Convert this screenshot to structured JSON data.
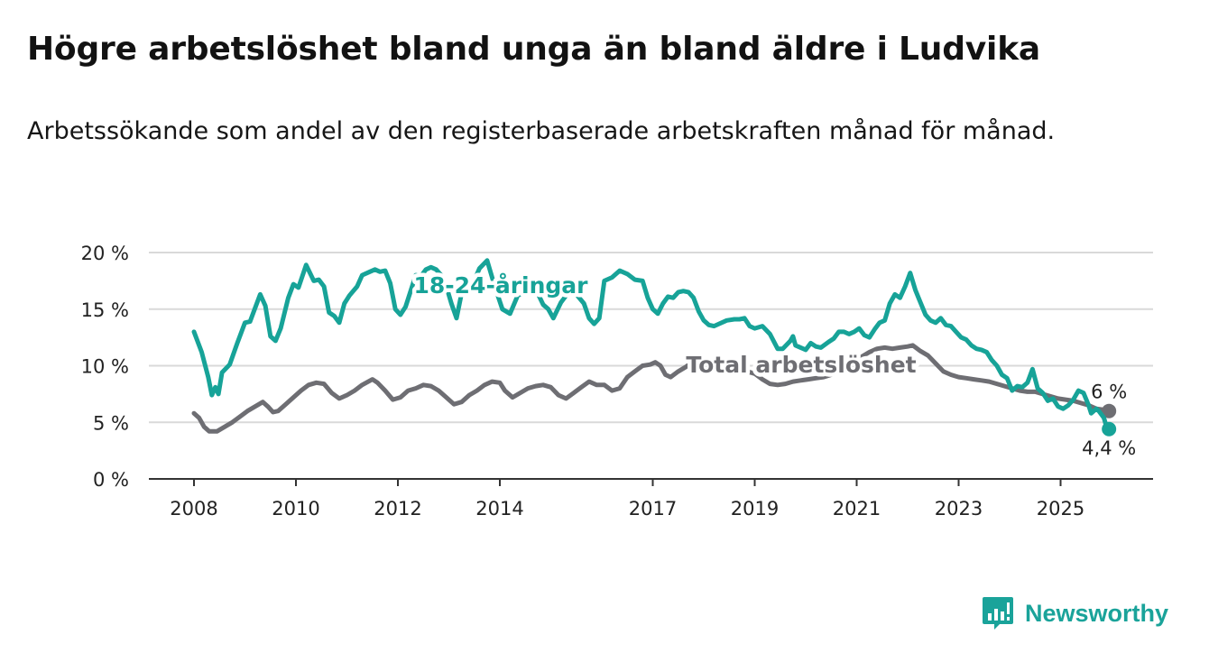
{
  "header": {
    "title": "Högre arbetslöshet bland unga än bland äldre i Ludvika",
    "subtitle": "Arbetssökande som andel av den registerbaserade arbetskraften månad för månad."
  },
  "brand": {
    "name": "Newsworthy",
    "color": "#1aa39a",
    "icon": "chart-bars-icon"
  },
  "chart_data": {
    "type": "line",
    "title": "Högre arbetslöshet bland unga än bland äldre i Ludvika",
    "subtitle": "Arbetssökande som andel av den registerbaserade arbetskraften månad för månad.",
    "xlabel": "",
    "ylabel": "",
    "x_range": [
      2008.0,
      2025.95
    ],
    "ylim": [
      0,
      20
    ],
    "y_ticks": [
      0,
      5,
      10,
      15,
      20
    ],
    "y_tick_labels": [
      "0 %",
      "5 %",
      "10 %",
      "15 %",
      "20 %"
    ],
    "x_ticks": [
      2008,
      2010,
      2012,
      2014,
      2017,
      2019,
      2021,
      2023,
      2025
    ],
    "x_tick_labels": [
      "2008",
      "2010",
      "2012",
      "2014",
      "2017",
      "2019",
      "2021",
      "2023",
      "2025"
    ],
    "grid": true,
    "series": [
      {
        "name": "18-24-åringar",
        "color": "#17a398",
        "end_label": "4,4 %",
        "points": [
          [
            2008.0,
            13.0
          ],
          [
            2008.15,
            11.2
          ],
          [
            2008.28,
            9.0
          ],
          [
            2008.35,
            7.4
          ],
          [
            2008.42,
            8.1
          ],
          [
            2008.48,
            7.5
          ],
          [
            2008.55,
            9.4
          ],
          [
            2008.7,
            10.1
          ],
          [
            2008.85,
            12.0
          ],
          [
            2009.0,
            13.8
          ],
          [
            2009.1,
            13.9
          ],
          [
            2009.3,
            16.3
          ],
          [
            2009.4,
            15.3
          ],
          [
            2009.5,
            12.6
          ],
          [
            2009.6,
            12.2
          ],
          [
            2009.7,
            13.3
          ],
          [
            2009.85,
            16.0
          ],
          [
            2009.95,
            17.2
          ],
          [
            2010.05,
            16.9
          ],
          [
            2010.2,
            18.9
          ],
          [
            2010.35,
            17.5
          ],
          [
            2010.45,
            17.6
          ],
          [
            2010.55,
            17.0
          ],
          [
            2010.65,
            14.7
          ],
          [
            2010.75,
            14.4
          ],
          [
            2010.85,
            13.8
          ],
          [
            2010.95,
            15.5
          ],
          [
            2011.05,
            16.2
          ],
          [
            2011.2,
            17.0
          ],
          [
            2011.3,
            18.0
          ],
          [
            2011.45,
            18.3
          ],
          [
            2011.55,
            18.5
          ],
          [
            2011.65,
            18.3
          ],
          [
            2011.75,
            18.4
          ],
          [
            2011.85,
            17.3
          ],
          [
            2011.95,
            15.0
          ],
          [
            2012.05,
            14.5
          ],
          [
            2012.15,
            15.2
          ],
          [
            2012.35,
            18.0
          ],
          [
            2012.45,
            17.9
          ],
          [
            2012.55,
            18.5
          ],
          [
            2012.65,
            18.7
          ],
          [
            2012.75,
            18.5
          ],
          [
            2012.85,
            18.0
          ],
          [
            2012.95,
            17.0
          ],
          [
            2013.05,
            15.5
          ],
          [
            2013.15,
            14.2
          ],
          [
            2013.3,
            17.5
          ],
          [
            2013.45,
            17.0
          ],
          [
            2013.6,
            18.6
          ],
          [
            2013.75,
            19.3
          ],
          [
            2013.9,
            17.0
          ],
          [
            2014.05,
            15.0
          ],
          [
            2014.2,
            14.6
          ],
          [
            2014.35,
            16.2
          ],
          [
            2014.5,
            16.5
          ],
          [
            2014.7,
            16.8
          ],
          [
            2014.85,
            15.4
          ],
          [
            2014.95,
            15.0
          ],
          [
            2015.05,
            14.2
          ],
          [
            2015.2,
            15.6
          ],
          [
            2015.35,
            16.5
          ],
          [
            2015.5,
            16.3
          ],
          [
            2015.65,
            15.5
          ],
          [
            2015.75,
            14.2
          ],
          [
            2015.85,
            13.7
          ],
          [
            2015.95,
            14.2
          ],
          [
            2016.05,
            17.5
          ],
          [
            2016.2,
            17.8
          ],
          [
            2016.35,
            18.4
          ],
          [
            2016.5,
            18.1
          ],
          [
            2016.65,
            17.6
          ],
          [
            2016.8,
            17.5
          ],
          [
            2016.9,
            16.0
          ],
          [
            2017.0,
            15.0
          ],
          [
            2017.1,
            14.6
          ],
          [
            2017.2,
            15.5
          ],
          [
            2017.3,
            16.1
          ],
          [
            2017.4,
            16.0
          ],
          [
            2017.5,
            16.5
          ],
          [
            2017.6,
            16.6
          ],
          [
            2017.7,
            16.5
          ],
          [
            2017.8,
            16.0
          ],
          [
            2017.9,
            14.8
          ],
          [
            2018.0,
            14.0
          ],
          [
            2018.1,
            13.6
          ],
          [
            2018.2,
            13.5
          ],
          [
            2018.3,
            13.7
          ],
          [
            2018.45,
            14.0
          ],
          [
            2018.6,
            14.1
          ],
          [
            2018.7,
            14.1
          ],
          [
            2018.8,
            14.2
          ],
          [
            2018.9,
            13.5
          ],
          [
            2019.0,
            13.3
          ],
          [
            2019.15,
            13.5
          ],
          [
            2019.3,
            12.8
          ],
          [
            2019.45,
            11.5
          ],
          [
            2019.55,
            11.5
          ],
          [
            2019.7,
            12.2
          ],
          [
            2019.75,
            12.6
          ],
          [
            2019.8,
            11.8
          ],
          [
            2019.9,
            11.6
          ],
          [
            2020.0,
            11.4
          ],
          [
            2020.1,
            12.0
          ],
          [
            2020.2,
            11.7
          ],
          [
            2020.3,
            11.6
          ],
          [
            2020.45,
            12.1
          ],
          [
            2020.55,
            12.4
          ],
          [
            2020.65,
            13.0
          ],
          [
            2020.75,
            13.0
          ],
          [
            2020.85,
            12.8
          ],
          [
            2020.95,
            13.0
          ],
          [
            2021.05,
            13.3
          ],
          [
            2021.15,
            12.7
          ],
          [
            2021.25,
            12.5
          ],
          [
            2021.35,
            13.2
          ],
          [
            2021.45,
            13.8
          ],
          [
            2021.55,
            14.0
          ],
          [
            2021.65,
            15.5
          ],
          [
            2021.75,
            16.3
          ],
          [
            2021.85,
            16.0
          ],
          [
            2021.95,
            17.0
          ],
          [
            2022.05,
            18.2
          ],
          [
            2022.15,
            16.7
          ],
          [
            2022.25,
            15.6
          ],
          [
            2022.35,
            14.5
          ],
          [
            2022.45,
            14.0
          ],
          [
            2022.55,
            13.8
          ],
          [
            2022.65,
            14.2
          ],
          [
            2022.75,
            13.6
          ],
          [
            2022.85,
            13.5
          ],
          [
            2022.95,
            13.0
          ],
          [
            2023.05,
            12.5
          ],
          [
            2023.15,
            12.3
          ],
          [
            2023.25,
            11.8
          ],
          [
            2023.35,
            11.5
          ],
          [
            2023.45,
            11.4
          ],
          [
            2023.55,
            11.2
          ],
          [
            2023.65,
            10.5
          ],
          [
            2023.75,
            10.0
          ],
          [
            2023.85,
            9.2
          ],
          [
            2023.95,
            8.9
          ],
          [
            2024.05,
            7.8
          ],
          [
            2024.15,
            8.2
          ],
          [
            2024.25,
            8.1
          ],
          [
            2024.35,
            8.5
          ],
          [
            2024.45,
            9.7
          ],
          [
            2024.55,
            8.0
          ],
          [
            2024.65,
            7.6
          ],
          [
            2024.75,
            6.9
          ],
          [
            2024.85,
            7.1
          ],
          [
            2024.95,
            6.4
          ],
          [
            2025.05,
            6.2
          ],
          [
            2025.15,
            6.5
          ],
          [
            2025.25,
            7.0
          ],
          [
            2025.35,
            7.8
          ],
          [
            2025.45,
            7.6
          ],
          [
            2025.55,
            6.5
          ],
          [
            2025.6,
            5.8
          ],
          [
            2025.7,
            6.2
          ],
          [
            2025.75,
            6.0
          ],
          [
            2025.85,
            5.4
          ],
          [
            2025.9,
            4.6
          ],
          [
            2025.95,
            4.4
          ]
        ]
      },
      {
        "name": "Total arbetslöshet",
        "color": "#6e6e73",
        "end_label": "6 %",
        "points": [
          [
            2008.0,
            5.8
          ],
          [
            2008.1,
            5.4
          ],
          [
            2008.2,
            4.6
          ],
          [
            2008.3,
            4.2
          ],
          [
            2008.45,
            4.2
          ],
          [
            2008.6,
            4.6
          ],
          [
            2008.75,
            5.0
          ],
          [
            2008.9,
            5.5
          ],
          [
            2009.05,
            6.0
          ],
          [
            2009.2,
            6.4
          ],
          [
            2009.35,
            6.8
          ],
          [
            2009.45,
            6.4
          ],
          [
            2009.55,
            5.9
          ],
          [
            2009.65,
            6.0
          ],
          [
            2009.8,
            6.6
          ],
          [
            2009.95,
            7.2
          ],
          [
            2010.1,
            7.8
          ],
          [
            2010.25,
            8.3
          ],
          [
            2010.4,
            8.5
          ],
          [
            2010.55,
            8.4
          ],
          [
            2010.7,
            7.6
          ],
          [
            2010.85,
            7.1
          ],
          [
            2011.0,
            7.4
          ],
          [
            2011.15,
            7.8
          ],
          [
            2011.3,
            8.3
          ],
          [
            2011.5,
            8.8
          ],
          [
            2011.6,
            8.5
          ],
          [
            2011.75,
            7.8
          ],
          [
            2011.9,
            7.0
          ],
          [
            2012.05,
            7.2
          ],
          [
            2012.2,
            7.8
          ],
          [
            2012.35,
            8.0
          ],
          [
            2012.5,
            8.3
          ],
          [
            2012.65,
            8.2
          ],
          [
            2012.8,
            7.8
          ],
          [
            2012.95,
            7.2
          ],
          [
            2013.1,
            6.6
          ],
          [
            2013.25,
            6.8
          ],
          [
            2013.4,
            7.4
          ],
          [
            2013.55,
            7.8
          ],
          [
            2013.7,
            8.3
          ],
          [
            2013.85,
            8.6
          ],
          [
            2014.0,
            8.5
          ],
          [
            2014.1,
            7.8
          ],
          [
            2014.25,
            7.2
          ],
          [
            2014.4,
            7.6
          ],
          [
            2014.55,
            8.0
          ],
          [
            2014.7,
            8.2
          ],
          [
            2014.85,
            8.3
          ],
          [
            2015.0,
            8.1
          ],
          [
            2015.15,
            7.4
          ],
          [
            2015.3,
            7.1
          ],
          [
            2015.45,
            7.6
          ],
          [
            2015.6,
            8.1
          ],
          [
            2015.75,
            8.6
          ],
          [
            2015.9,
            8.3
          ],
          [
            2016.05,
            8.3
          ],
          [
            2016.2,
            7.8
          ],
          [
            2016.35,
            8.0
          ],
          [
            2016.5,
            9.0
          ],
          [
            2016.65,
            9.5
          ],
          [
            2016.8,
            10.0
          ],
          [
            2016.95,
            10.1
          ],
          [
            2017.05,
            10.3
          ],
          [
            2017.15,
            10.0
          ],
          [
            2017.25,
            9.2
          ],
          [
            2017.35,
            9.0
          ],
          [
            2017.5,
            9.5
          ],
          [
            2017.65,
            9.9
          ],
          [
            2017.8,
            10.4
          ],
          [
            2017.95,
            10.7
          ],
          [
            2018.1,
            10.5
          ],
          [
            2018.25,
            10.0
          ],
          [
            2018.4,
            9.6
          ],
          [
            2018.55,
            9.4
          ],
          [
            2018.7,
            9.4
          ],
          [
            2018.85,
            9.5
          ],
          [
            2019.0,
            9.3
          ],
          [
            2019.15,
            8.8
          ],
          [
            2019.3,
            8.4
          ],
          [
            2019.45,
            8.3
          ],
          [
            2019.6,
            8.4
          ],
          [
            2019.75,
            8.6
          ],
          [
            2019.9,
            8.7
          ],
          [
            2020.05,
            8.8
          ],
          [
            2020.2,
            8.9
          ],
          [
            2020.35,
            9.0
          ],
          [
            2020.5,
            9.2
          ],
          [
            2020.65,
            9.6
          ],
          [
            2020.8,
            10.2
          ],
          [
            2020.95,
            10.6
          ],
          [
            2021.1,
            10.8
          ],
          [
            2021.25,
            11.2
          ],
          [
            2021.4,
            11.5
          ],
          [
            2021.55,
            11.6
          ],
          [
            2021.7,
            11.5
          ],
          [
            2021.85,
            11.6
          ],
          [
            2022.0,
            11.7
          ],
          [
            2022.1,
            11.8
          ],
          [
            2022.25,
            11.3
          ],
          [
            2022.4,
            10.9
          ],
          [
            2022.55,
            10.2
          ],
          [
            2022.7,
            9.5
          ],
          [
            2022.85,
            9.2
          ],
          [
            2023.0,
            9.0
          ],
          [
            2023.15,
            8.9
          ],
          [
            2023.3,
            8.8
          ],
          [
            2023.45,
            8.7
          ],
          [
            2023.6,
            8.6
          ],
          [
            2023.75,
            8.4
          ],
          [
            2023.9,
            8.2
          ],
          [
            2024.05,
            8.0
          ],
          [
            2024.2,
            7.8
          ],
          [
            2024.35,
            7.7
          ],
          [
            2024.5,
            7.7
          ],
          [
            2024.65,
            7.5
          ],
          [
            2024.8,
            7.3
          ],
          [
            2024.95,
            7.1
          ],
          [
            2025.1,
            7.0
          ],
          [
            2025.25,
            6.9
          ],
          [
            2025.4,
            6.7
          ],
          [
            2025.55,
            6.5
          ],
          [
            2025.7,
            6.2
          ],
          [
            2025.85,
            6.1
          ],
          [
            2025.95,
            6.0
          ]
        ]
      }
    ]
  }
}
